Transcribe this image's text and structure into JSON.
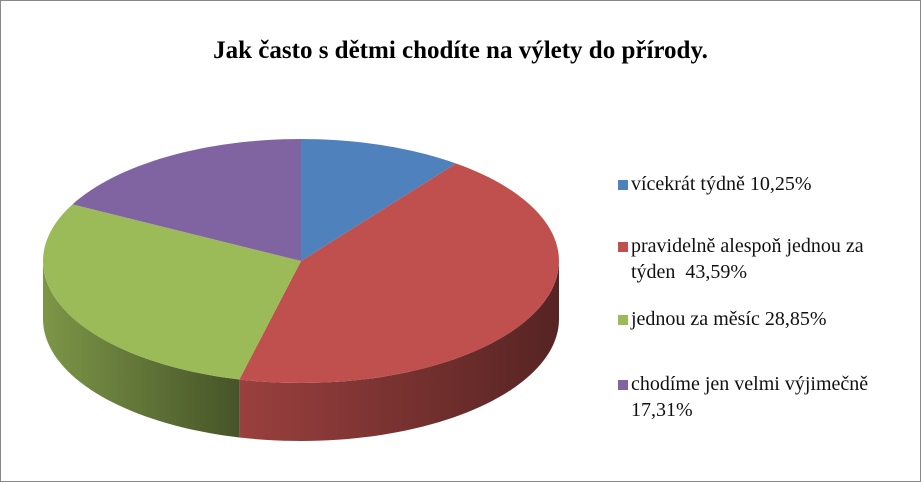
{
  "chart_data": {
    "type": "pie3d",
    "title": "Jak často s dětmi chodíte na výlety do přírody.",
    "categories": [
      "vícekrát týdně 10,25%",
      "pravidelně alespoň jednou za týden  43,59%",
      "jednou za měsíc 28,85%",
      "chodíme jen velmi výjimečně 17,31%"
    ],
    "values": [
      10.25,
      43.59,
      28.85,
      17.31
    ],
    "colors": [
      "#4f81bd",
      "#c0504d",
      "#9bbb59",
      "#8064a2"
    ],
    "legend": "right"
  }
}
